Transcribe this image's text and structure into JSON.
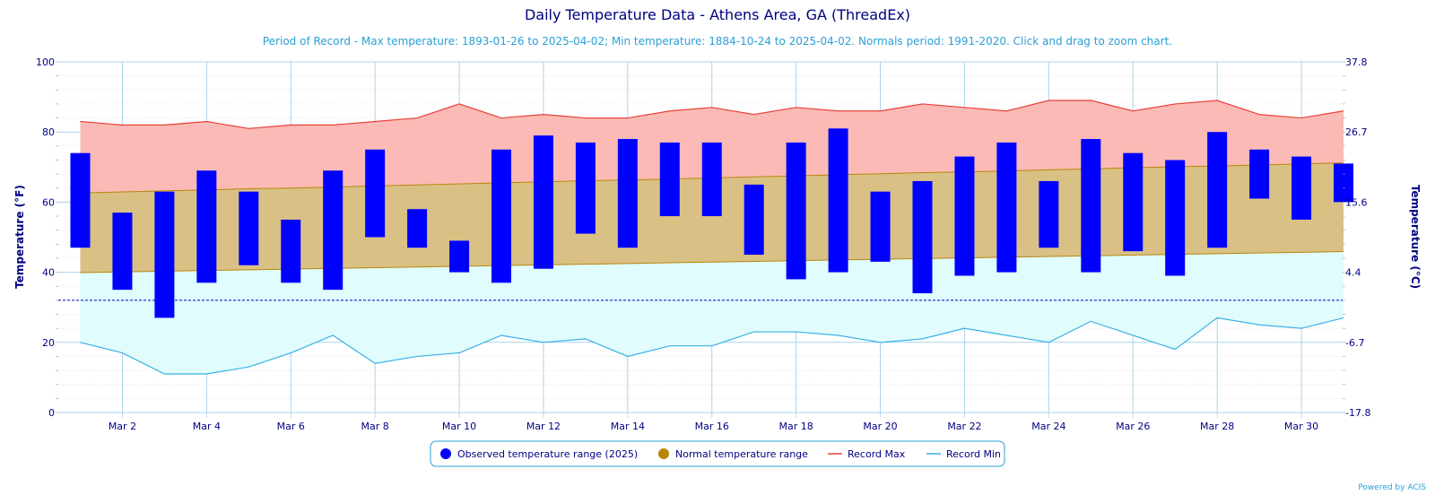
{
  "chart_data": {
    "type": "bar",
    "title": "Daily Temperature Data - Athens Area, GA (ThreadEx)",
    "subtitle": "Period of Record - Max temperature: 1893-01-26 to 2025-04-02; Min temperature: 1884-10-24 to 2025-04-02. Normals period: 1991-2020. Click and drag to zoom chart.",
    "ylabel": "Temperature (°F)",
    "ylabel_right": "Temperature (°C)",
    "ylim": [
      0,
      100
    ],
    "yticks": [
      "0",
      "20",
      "40",
      "60",
      "80",
      "100"
    ],
    "yticks_right": [
      "-17.8",
      "-6.7",
      "4.4",
      "15.6",
      "26.7",
      "37.8"
    ],
    "xtick_labels": [
      "Mar 2",
      "Mar 4",
      "Mar 6",
      "Mar 8",
      "Mar 10",
      "Mar 12",
      "Mar 14",
      "Mar 16",
      "Mar 18",
      "Mar 20",
      "Mar 22",
      "Mar 24",
      "Mar 26",
      "Mar 28",
      "Mar 30"
    ],
    "xtick_days": [
      2,
      4,
      6,
      8,
      10,
      12,
      14,
      16,
      18,
      20,
      22,
      24,
      26,
      28,
      30
    ],
    "days": [
      1,
      2,
      3,
      4,
      5,
      6,
      7,
      8,
      9,
      10,
      11,
      12,
      13,
      14,
      15,
      16,
      17,
      18,
      19,
      20,
      21,
      22,
      23,
      24,
      25,
      26,
      27,
      28,
      29,
      30,
      31
    ],
    "observed_max": [
      74,
      57,
      63,
      69,
      63,
      55,
      69,
      75,
      58,
      49,
      75,
      79,
      77,
      78,
      77,
      77,
      65,
      77,
      81,
      63,
      66,
      73,
      77,
      66,
      78,
      74,
      72,
      80,
      75,
      73,
      71
    ],
    "observed_min": [
      47,
      35,
      27,
      37,
      42,
      37,
      35,
      50,
      47,
      40,
      37,
      41,
      51,
      47,
      56,
      56,
      45,
      38,
      40,
      43,
      34,
      39,
      40,
      47,
      40,
      46,
      39,
      47,
      61,
      55,
      60
    ],
    "normal_max": [
      62.6,
      62.9,
      63.2,
      63.5,
      63.8,
      64.0,
      64.3,
      64.6,
      64.9,
      65.2,
      65.5,
      65.8,
      66.1,
      66.3,
      66.6,
      66.9,
      67.2,
      67.5,
      67.8,
      68.1,
      68.4,
      68.6,
      68.9,
      69.2,
      69.5,
      69.8,
      70.1,
      70.3,
      70.6,
      70.9,
      71.2
    ],
    "normal_min": [
      39.9,
      40.1,
      40.3,
      40.5,
      40.7,
      40.9,
      41.1,
      41.3,
      41.5,
      41.7,
      41.9,
      42.1,
      42.3,
      42.5,
      42.7,
      42.9,
      43.1,
      43.3,
      43.5,
      43.7,
      43.9,
      44.1,
      44.3,
      44.5,
      44.7,
      44.9,
      45.1,
      45.3,
      45.5,
      45.7,
      45.9
    ],
    "record_max": [
      83,
      82,
      82,
      83,
      81,
      82,
      82,
      83,
      84,
      88,
      84,
      85,
      84,
      84,
      86,
      87,
      85,
      87,
      86,
      86,
      88,
      87,
      86,
      89,
      89,
      86,
      88,
      89,
      85,
      84,
      86
    ],
    "record_min": [
      20,
      17,
      11,
      11,
      13,
      17,
      22,
      14,
      16,
      17,
      22,
      20,
      21,
      16,
      19,
      19,
      23,
      23,
      22,
      20,
      21,
      24,
      22,
      20,
      26,
      22,
      18,
      27,
      25,
      24,
      27
    ],
    "freezing_line": 32,
    "legend": [
      "Observed temperature range (2025)",
      "Normal temperature range",
      "Record Max",
      "Record Min"
    ],
    "legend_position": "bottom-center",
    "grid": true,
    "colors": {
      "observed": "#0000ff",
      "normal_fill": "#d9c185",
      "normal_line": "#b8860b",
      "record_max_line": "#e8413b",
      "record_max_fill": "#fbbab5",
      "record_min_line": "#3ab0e8",
      "record_min_fill": "#e0fcfc",
      "grid": "#a8d4ee",
      "freezing": "#0000cc"
    }
  },
  "credit": "Powered by ACIS"
}
